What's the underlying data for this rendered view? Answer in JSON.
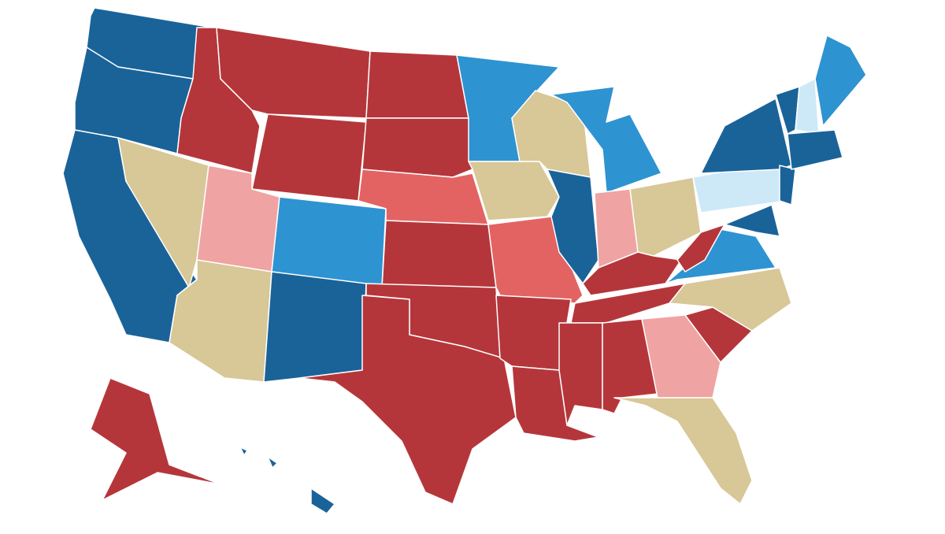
{
  "map": {
    "background": "#ffffff",
    "border_color": "#ffffff",
    "region_colors": [
      "#1a6399",
      "#1a6399",
      "#1a6399",
      "#d8c797",
      "#b5363a",
      "#b5363a",
      "#b5363a",
      "#f0a3a3",
      "#2e93d1",
      "#d8c797",
      "#1a6399",
      "#b5363a",
      "#b5363a",
      "#e36363",
      "#b5363a",
      "#b5363a",
      "#b5363a",
      "#2e93d1",
      "#d8c797",
      "#e36363",
      "#b5363a",
      "#b5363a",
      "#d8c797",
      "#1a6399",
      "#2e93d1",
      "#f0a3a3",
      "#d8c797",
      "#b5363a",
      "#b5363a",
      "#b5363a",
      "#b5363a",
      "#f0a3a3",
      "#b5363a",
      "#d8c797",
      "#d8c797",
      "#2e93d1",
      "#b5363a",
      "#cde9f8",
      "#1a6399",
      "#1a6399",
      "#1a6399",
      "#1a6399",
      "#cde9f8",
      "#2e93d1",
      "#1a6399",
      "#b5363a",
      "#1a6399",
      "#1a6399",
      "#1a6399"
    ]
  }
}
